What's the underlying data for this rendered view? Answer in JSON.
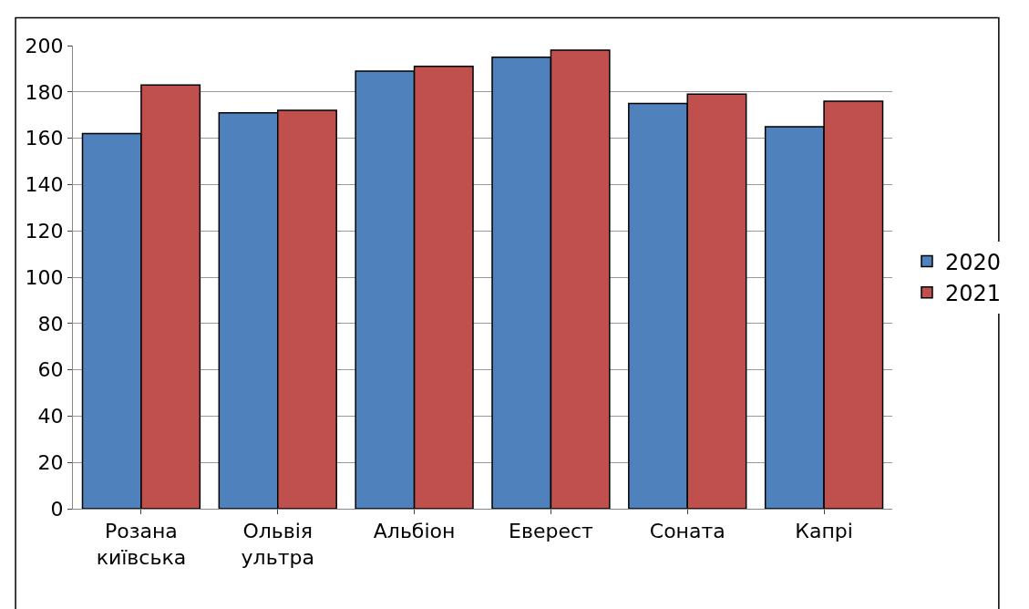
{
  "chart_data": {
    "type": "bar",
    "categories": [
      "Розана київська",
      "Ольвія ультра",
      "Альбіон",
      "Еверест",
      "Соната",
      "Капрі"
    ],
    "series": [
      {
        "name": "2020",
        "color": "#4f81bd",
        "values": [
          162,
          171,
          189,
          195,
          175,
          165
        ]
      },
      {
        "name": "2021",
        "color": "#c0504d",
        "values": [
          183,
          172,
          191,
          198,
          179,
          176
        ]
      }
    ],
    "ylim": [
      0,
      200
    ],
    "yticks": [
      0,
      20,
      40,
      60,
      80,
      100,
      120,
      140,
      160,
      180,
      200
    ],
    "grid": "y",
    "legend": "right"
  }
}
